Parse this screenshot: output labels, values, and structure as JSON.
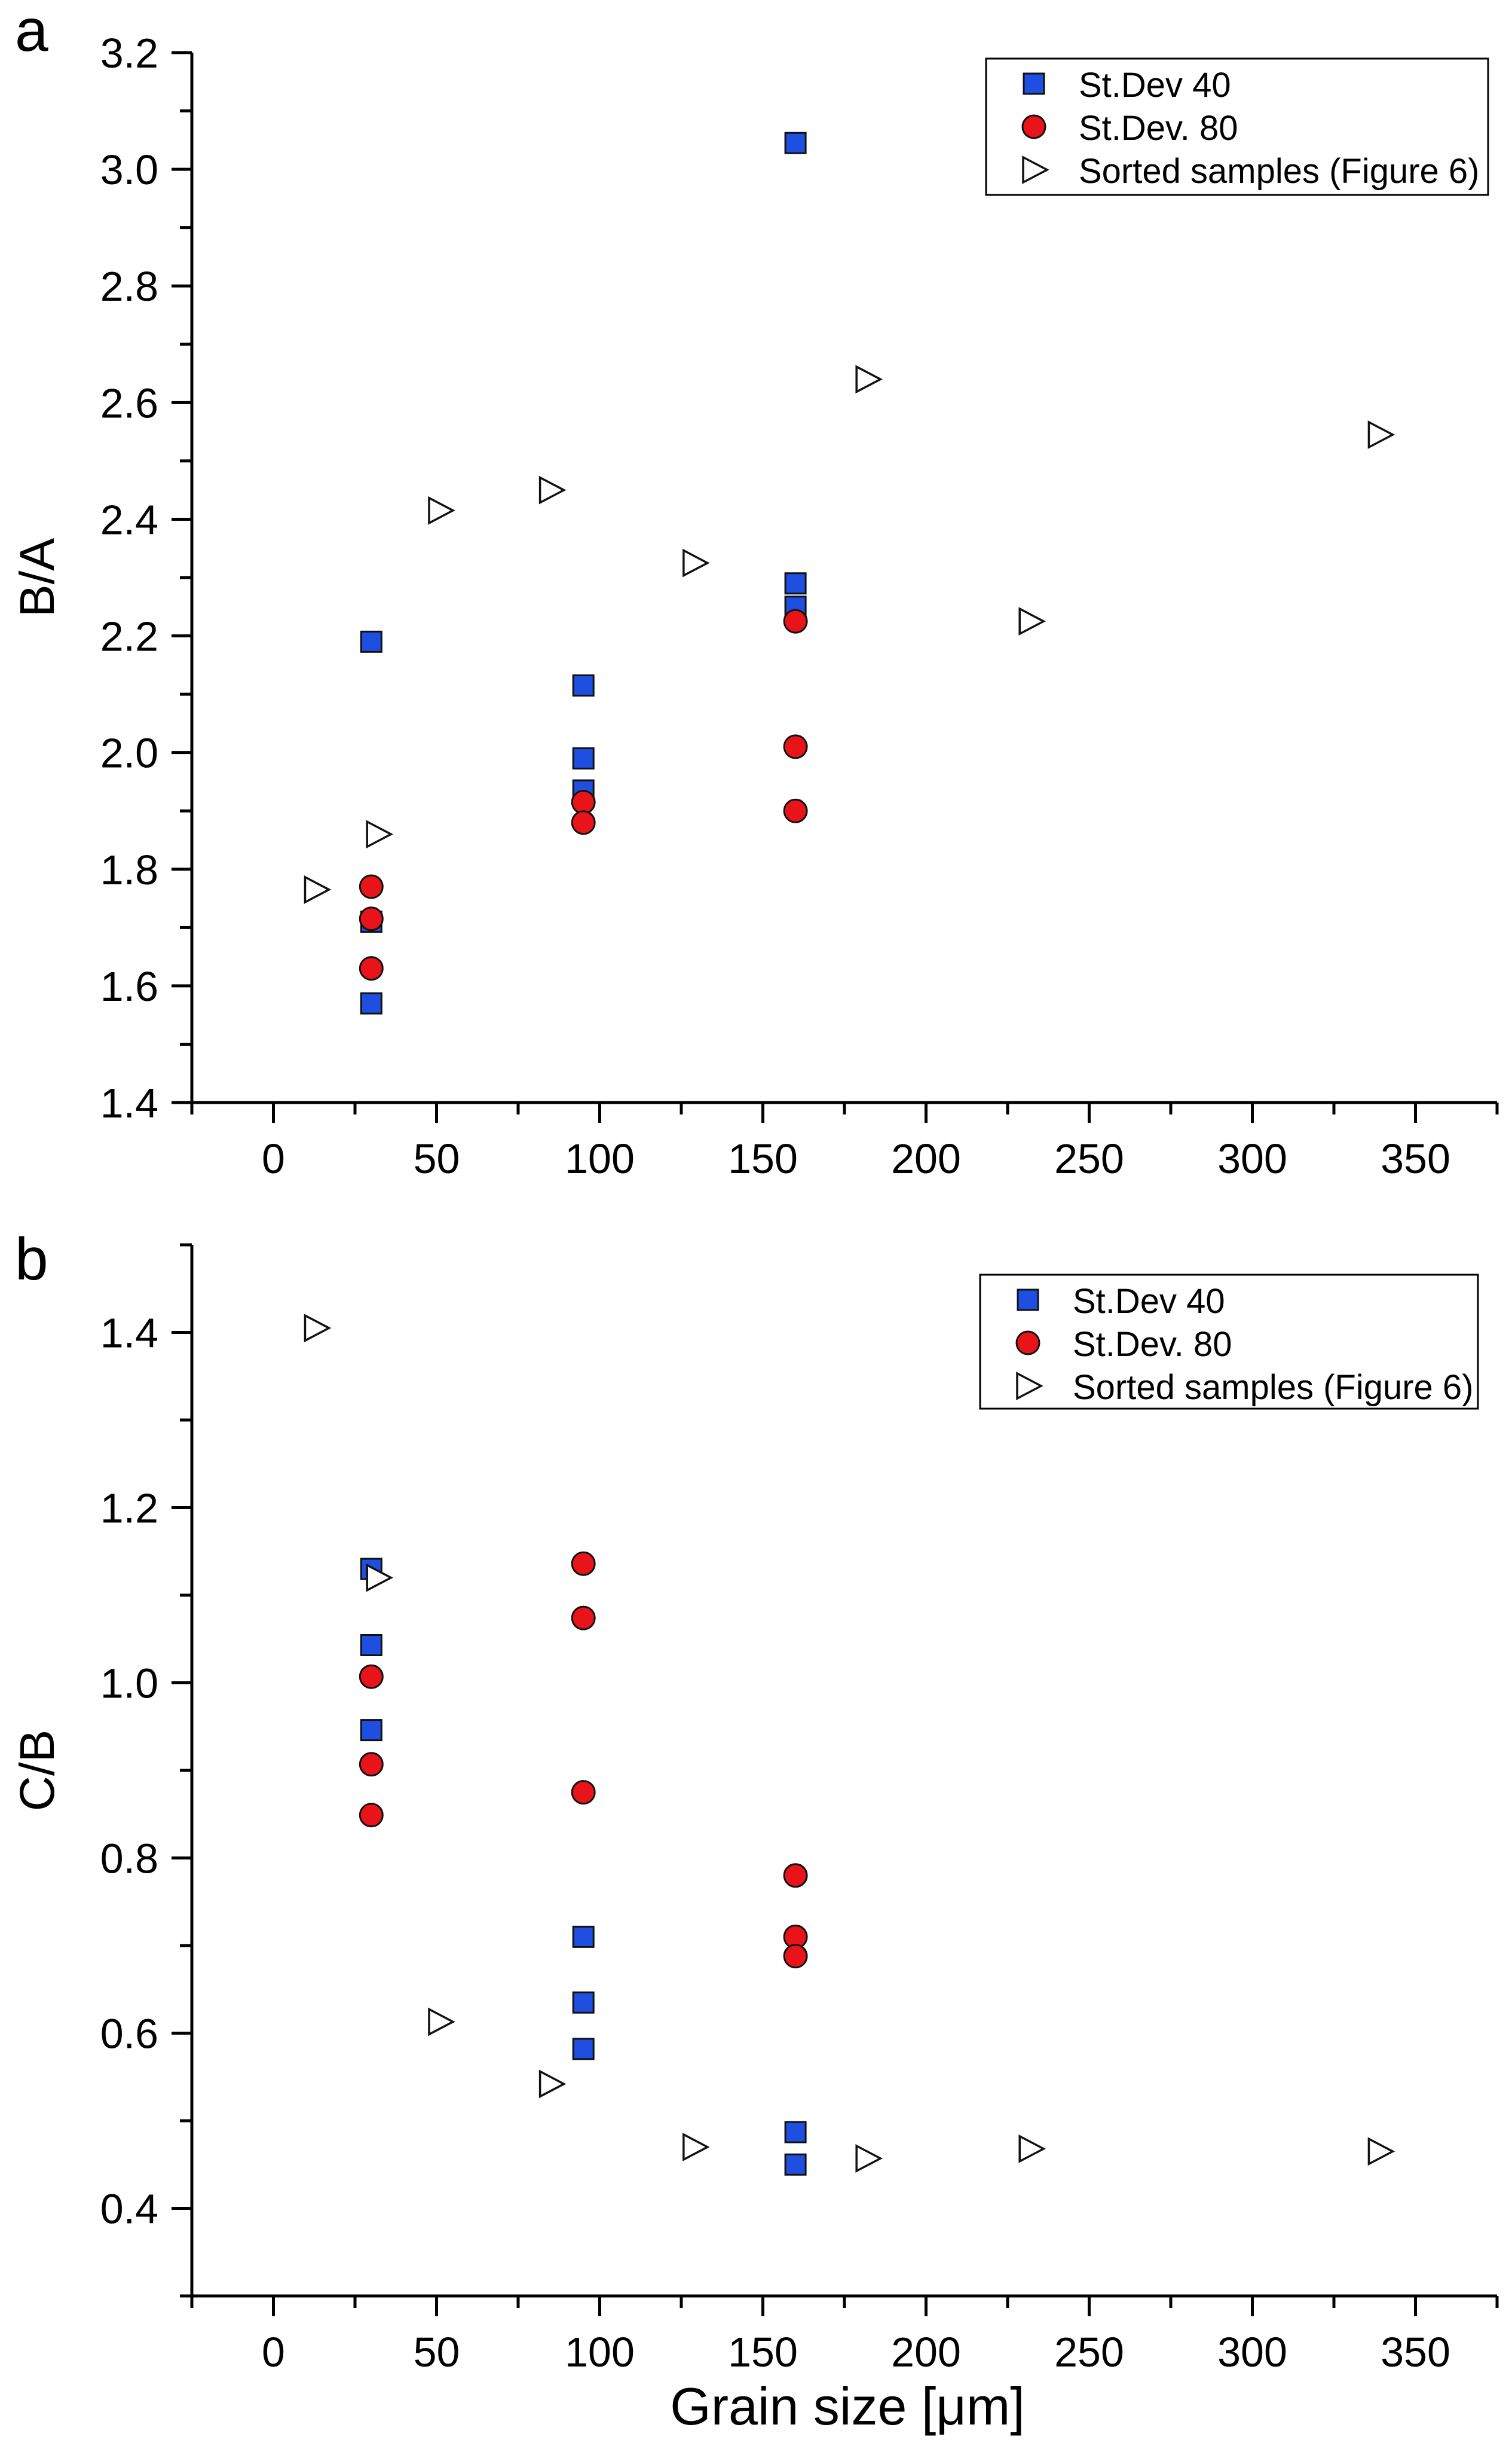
{
  "chart_data": [
    {
      "type": "scatter",
      "panel_label": "a",
      "title": "",
      "xlabel": "",
      "ylabel": "B/A",
      "xlim": [
        -25,
        375
      ],
      "ylim": [
        1.4,
        3.2
      ],
      "xticks": [
        0,
        50,
        100,
        150,
        200,
        250,
        300,
        350
      ],
      "xtick_labels": [
        "0",
        "50",
        "100",
        "150",
        "200",
        "250",
        "300",
        "350"
      ],
      "yticks": [
        1.4,
        1.6,
        1.8,
        2.0,
        2.2,
        2.4,
        2.6,
        2.8,
        3.0,
        3.2
      ],
      "ytick_labels": [
        "1.4",
        "1.6",
        "1.8",
        "2.0",
        "2.2",
        "2.4",
        "2.6",
        "2.8",
        "3.0",
        "3.2"
      ],
      "legend_position": "top-right",
      "series": [
        {
          "name": "St.Dev 40",
          "marker": "square",
          "color": "#1f4fe0",
          "points": [
            [
              30,
              2.19
            ],
            [
              30,
              1.71
            ],
            [
              30,
              1.57
            ],
            [
              95,
              2.115
            ],
            [
              95,
              1.99
            ],
            [
              95,
              1.935
            ],
            [
              160,
              3.045
            ],
            [
              160,
              2.29
            ],
            [
              160,
              2.25
            ]
          ]
        },
        {
          "name": "St.Dev. 80",
          "marker": "circle",
          "color": "#e8141a",
          "points": [
            [
              30,
              1.77
            ],
            [
              30,
              1.715
            ],
            [
              30,
              1.63
            ],
            [
              95,
              1.915
            ],
            [
              95,
              1.88
            ],
            [
              160,
              2.225
            ],
            [
              160,
              2.01
            ],
            [
              160,
              1.9
            ]
          ]
        },
        {
          "name": "Sorted samples (Figure 6)",
          "marker": "triangle-right",
          "color": "#ffffff",
          "points": [
            [
              13,
              1.765
            ],
            [
              32,
              1.86
            ],
            [
              51,
              2.415
            ],
            [
              85,
              2.45
            ],
            [
              129,
              2.325
            ],
            [
              182,
              2.64
            ],
            [
              232,
              2.225
            ],
            [
              339,
              2.545
            ]
          ]
        }
      ]
    },
    {
      "type": "scatter",
      "panel_label": "b",
      "title": "",
      "xlabel": "Grain size [μm]",
      "ylabel": "C/B",
      "xlim": [
        -25,
        375
      ],
      "ylim": [
        0.3,
        1.5
      ],
      "xticks": [
        0,
        50,
        100,
        150,
        200,
        250,
        300,
        350
      ],
      "xtick_labels": [
        "0",
        "50",
        "100",
        "150",
        "200",
        "250",
        "300",
        "350"
      ],
      "yticks": [
        0.4,
        0.6,
        0.8,
        1.0,
        1.2,
        1.4
      ],
      "ytick_labels": [
        "0.4",
        "0.6",
        "0.8",
        "1.0",
        "1.2",
        "1.4"
      ],
      "legend_position": "top-right",
      "series": [
        {
          "name": "St.Dev 40",
          "marker": "square",
          "color": "#1f4fe0",
          "points": [
            [
              30,
              1.13
            ],
            [
              30,
              1.043
            ],
            [
              30,
              0.946
            ],
            [
              95,
              0.71
            ],
            [
              95,
              0.635
            ],
            [
              95,
              0.582
            ],
            [
              160,
              0.487
            ],
            [
              160,
              0.45
            ]
          ]
        },
        {
          "name": "St.Dev. 80",
          "marker": "circle",
          "color": "#e8141a",
          "points": [
            [
              30,
              1.007
            ],
            [
              30,
              0.907
            ],
            [
              30,
              0.849
            ],
            [
              95,
              1.136
            ],
            [
              95,
              1.074
            ],
            [
              95,
              0.875
            ],
            [
              160,
              0.78
            ],
            [
              160,
              0.71
            ],
            [
              160,
              0.688
            ]
          ]
        },
        {
          "name": "Sorted samples (Figure 6)",
          "marker": "triangle-right",
          "color": "#ffffff",
          "points": [
            [
              13,
              1.405
            ],
            [
              32,
              1.12
            ],
            [
              51,
              0.613
            ],
            [
              85,
              0.542
            ],
            [
              129,
              0.47
            ],
            [
              182,
              0.457
            ],
            [
              232,
              0.468
            ],
            [
              339,
              0.465
            ]
          ]
        }
      ]
    }
  ]
}
